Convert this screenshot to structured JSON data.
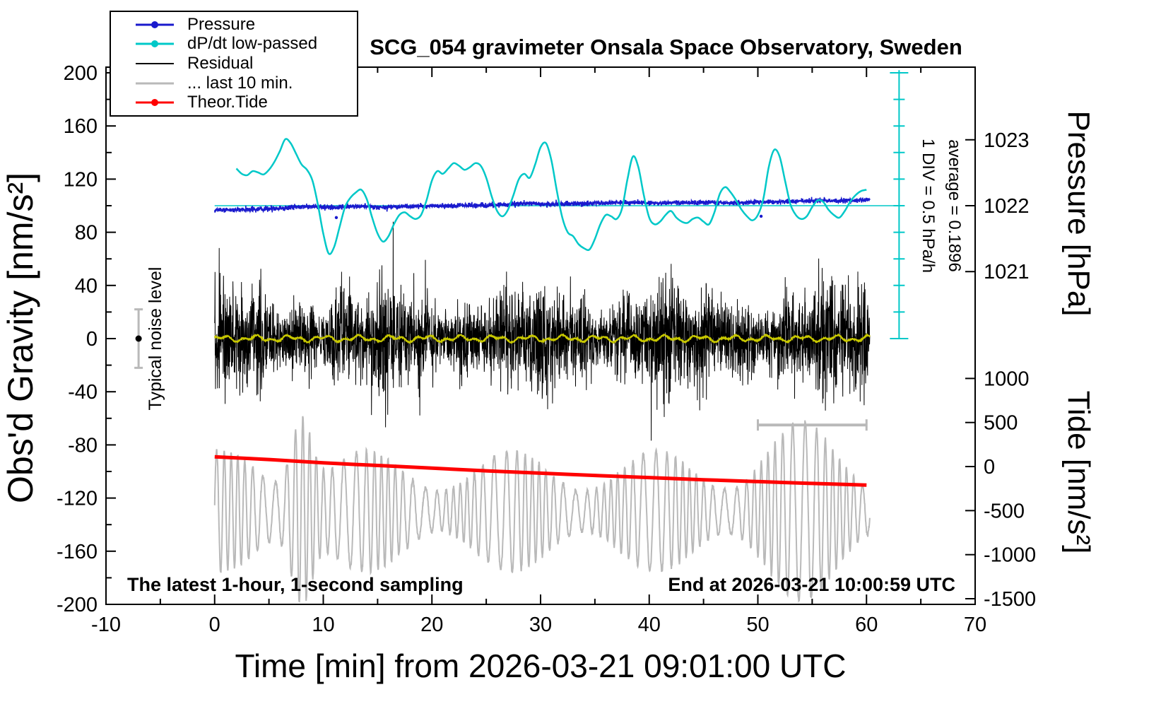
{
  "title": "SCG_054 gravimeter Onsala Space Observatory, Sweden",
  "legend": {
    "items": [
      {
        "label": "Pressure",
        "color": "#1a1acd",
        "dot": true,
        "lw": 3
      },
      {
        "label": "dP/dt low-passed",
        "color": "#00c8c8",
        "dot": true,
        "lw": 3
      },
      {
        "label": "Residual",
        "color": "#000000",
        "dot": false,
        "lw": 2
      },
      {
        "label": "... last 10 min.",
        "color": "#b9b9b9",
        "dot": false,
        "lw": 3
      },
      {
        "label": "Theor.Tide",
        "color": "#ff0000",
        "dot": true,
        "lw": 3
      }
    ]
  },
  "annotations": {
    "bottom_left": "The latest 1-hour, 1-second sampling",
    "bottom_right": "End at 2026-03-21 10:00:59 UTC",
    "noise_label": "Typical noise level",
    "div_label": "1 DIV = 0.5 hPa/h",
    "average_label": "average = 0.1896"
  },
  "chart_data": {
    "type": "line",
    "title": "SCG_054 gravimeter Onsala Space Observatory, Sweden",
    "xlabel": "Time [min] from 2026-03-21 09:01:00 UTC",
    "ylabel_left": "Obs'd Gravity [nm/s²]",
    "ylabel_pressure": "Pressure [hPa]",
    "ylabel_tide": "Tide [nm/s²]",
    "xlim": [
      -10,
      70
    ],
    "ylim": [
      -200,
      200
    ],
    "xticks": [
      -10,
      0,
      10,
      20,
      30,
      40,
      50,
      60,
      70
    ],
    "yticks": [
      -200,
      -160,
      -120,
      -80,
      -40,
      0,
      40,
      80,
      120,
      160,
      200
    ],
    "pressure_ticks": [
      1023,
      1022,
      1021
    ],
    "tide_ticks": [
      1000,
      500,
      0,
      -500,
      -1000,
      -1500
    ],
    "pressure_map": {
      "hpa_ref": 1022,
      "gravity_ref": 100,
      "gravity_per_hpa": 49.6
    },
    "tide_map": {
      "tide_ref": 0,
      "gravity_ref": -96.3,
      "gravity_per_unit": 0.0663
    },
    "markers": {
      "noise_marker": {
        "x": -7,
        "y": 0,
        "half_height": 22
      },
      "div_scale": {
        "x": 63,
        "g_top": 202,
        "g_bottom": 0,
        "tick_step": 20
      },
      "window_bar": {
        "x1": 50,
        "x2": 60,
        "y": -65
      },
      "dpdt_zero_line": {
        "y": 100,
        "x1": 0,
        "x2": 63
      }
    },
    "series": [
      {
        "name": "Pressure",
        "color": "#1a1acd",
        "axis": "pressure",
        "style": "noisy-line",
        "noise_hpa": 0.018,
        "anchors_hpa": [
          [
            0,
            1021.93
          ],
          [
            2,
            1021.94
          ],
          [
            4,
            1021.95
          ],
          [
            6,
            1021.96
          ],
          [
            8,
            1021.985
          ],
          [
            9,
            1021.99
          ],
          [
            10,
            1021.975
          ],
          [
            12,
            1021.985
          ],
          [
            14,
            1021.99
          ],
          [
            15,
            1021.975
          ],
          [
            16,
            1021.98
          ],
          [
            18,
            1021.99
          ],
          [
            20,
            1021.995
          ],
          [
            22,
            1022.0
          ],
          [
            24,
            1022.005
          ],
          [
            26,
            1022.01
          ],
          [
            28,
            1022.03
          ],
          [
            29,
            1022.035
          ],
          [
            30,
            1022.02
          ],
          [
            32,
            1022.025
          ],
          [
            34,
            1022.03
          ],
          [
            36,
            1022.04
          ],
          [
            38,
            1022.05
          ],
          [
            40,
            1022.04
          ],
          [
            42,
            1022.045
          ],
          [
            44,
            1022.05
          ],
          [
            46,
            1022.045
          ],
          [
            48,
            1022.04
          ],
          [
            50,
            1022.055
          ],
          [
            52,
            1022.06
          ],
          [
            54,
            1022.07
          ],
          [
            56,
            1022.08
          ],
          [
            58,
            1022.075
          ],
          [
            60.3,
            1022.09
          ]
        ],
        "outliers_hpa": [
          [
            11.2,
            1021.82
          ],
          [
            50.3,
            1021.84
          ]
        ]
      },
      {
        "name": "dP/dt low-passed",
        "color": "#00c8c8",
        "axis": "gravity",
        "style": "smooth",
        "zero_gravity": 100,
        "anchors": [
          [
            2,
            128
          ],
          [
            2.5,
            124
          ],
          [
            3,
            123
          ],
          [
            3.5,
            126
          ],
          [
            4,
            125
          ],
          [
            4.5,
            123.5
          ],
          [
            5,
            127
          ],
          [
            5.5,
            133
          ],
          [
            6,
            141
          ],
          [
            6.5,
            150
          ],
          [
            7,
            147
          ],
          [
            7.5,
            139
          ],
          [
            8,
            131
          ],
          [
            8.5,
            127
          ],
          [
            9,
            119
          ],
          [
            9.5,
            101
          ],
          [
            10,
            79
          ],
          [
            10.5,
            64
          ],
          [
            11,
            69
          ],
          [
            11.5,
            84
          ],
          [
            12,
            99
          ],
          [
            12.5,
            106
          ],
          [
            13,
            110
          ],
          [
            13.5,
            112
          ],
          [
            14,
            105
          ],
          [
            14.5,
            91
          ],
          [
            15,
            79
          ],
          [
            15.5,
            73
          ],
          [
            16,
            77
          ],
          [
            16.5,
            86
          ],
          [
            17,
            93
          ],
          [
            17.5,
            95
          ],
          [
            18,
            92
          ],
          [
            18.5,
            90
          ],
          [
            19,
            93
          ],
          [
            19.5,
            104
          ],
          [
            20,
            119
          ],
          [
            20.5,
            126
          ],
          [
            21,
            124
          ],
          [
            21.5,
            128
          ],
          [
            22,
            132
          ],
          [
            22.5,
            130
          ],
          [
            23,
            127
          ],
          [
            23.5,
            129
          ],
          [
            24,
            132
          ],
          [
            24.5,
            130
          ],
          [
            25,
            121
          ],
          [
            25.5,
            107
          ],
          [
            26,
            96
          ],
          [
            26.5,
            92
          ],
          [
            27,
            97
          ],
          [
            27.5,
            108
          ],
          [
            28,
            120
          ],
          [
            28.5,
            124
          ],
          [
            29,
            121
          ],
          [
            29.5,
            131
          ],
          [
            30,
            144
          ],
          [
            30.5,
            147
          ],
          [
            31,
            134
          ],
          [
            31.5,
            111
          ],
          [
            32,
            91
          ],
          [
            32.5,
            80
          ],
          [
            33,
            77
          ],
          [
            33.5,
            71
          ],
          [
            34,
            68
          ],
          [
            34.5,
            67
          ],
          [
            35,
            75
          ],
          [
            35.5,
            86
          ],
          [
            36,
            93
          ],
          [
            36.5,
            92
          ],
          [
            37,
            90
          ],
          [
            37.5,
            98
          ],
          [
            38,
            120
          ],
          [
            38.5,
            137
          ],
          [
            39,
            129
          ],
          [
            39.5,
            108
          ],
          [
            40,
            91
          ],
          [
            40.5,
            86
          ],
          [
            41,
            88
          ],
          [
            41.5,
            93
          ],
          [
            42,
            96
          ],
          [
            42.5,
            91
          ],
          [
            43,
            88
          ],
          [
            43.5,
            87
          ],
          [
            44,
            90
          ],
          [
            44.5,
            91
          ],
          [
            45,
            88
          ],
          [
            45.5,
            86
          ],
          [
            46,
            95
          ],
          [
            46.5,
            109
          ],
          [
            47,
            114
          ],
          [
            47.5,
            110
          ],
          [
            48,
            104
          ],
          [
            48.5,
            97
          ],
          [
            49,
            92
          ],
          [
            49.5,
            89
          ],
          [
            50,
            93
          ],
          [
            50.5,
            105
          ],
          [
            51,
            129
          ],
          [
            51.5,
            142
          ],
          [
            52,
            137
          ],
          [
            52.5,
            119
          ],
          [
            53,
            101
          ],
          [
            53.5,
            93
          ],
          [
            54,
            90
          ],
          [
            54.5,
            92
          ],
          [
            55,
            99
          ],
          [
            55.5,
            104
          ],
          [
            56,
            103
          ],
          [
            56.5,
            97
          ],
          [
            57,
            93
          ],
          [
            57.5,
            91
          ],
          [
            58,
            96
          ],
          [
            58.5,
            103
          ],
          [
            59,
            108
          ],
          [
            59.5,
            111
          ],
          [
            60,
            112
          ]
        ]
      },
      {
        "name": "Residual",
        "color": "#000000",
        "axis": "gravity",
        "style": "noise",
        "center": 0,
        "sigma": 16,
        "clamp": 88,
        "samples_per_min": 60,
        "x_range": [
          0,
          60.3
        ]
      },
      {
        "name": "Residual low-passed",
        "color": "#c8c800",
        "axis": "gravity",
        "style": "wiggle",
        "center": 0,
        "amplitude": 3,
        "x_range": [
          0,
          60.3
        ]
      },
      {
        "name": "... last 10 min.",
        "color": "#b9b9b9",
        "axis": "gravity",
        "style": "oscillation",
        "center": -130,
        "amplitude": 38,
        "period_min": 0.8,
        "x_range": [
          0,
          60.3
        ]
      },
      {
        "name": "Theor.Tide",
        "color": "#ff0000",
        "axis": "gravity",
        "style": "thick-line",
        "width": 5,
        "anchors": [
          [
            0,
            -89
          ],
          [
            5,
            -91
          ],
          [
            10,
            -93.5
          ],
          [
            15,
            -95.5
          ],
          [
            20,
            -97.5
          ],
          [
            25,
            -99.5
          ],
          [
            30,
            -101.3
          ],
          [
            35,
            -103
          ],
          [
            40,
            -104.6
          ],
          [
            45,
            -106.2
          ],
          [
            50,
            -107.6
          ],
          [
            55,
            -109
          ],
          [
            60,
            -110.2
          ]
        ]
      }
    ]
  }
}
